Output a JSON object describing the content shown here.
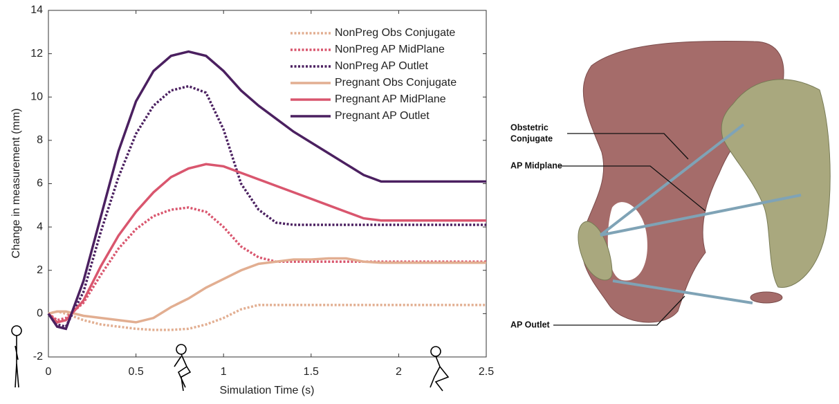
{
  "chart_data": {
    "type": "line",
    "xlabel": "Simulation Time (s)",
    "ylabel": "Change in measurement (mm)",
    "x": [
      0,
      0.05,
      0.1,
      0.2,
      0.3,
      0.4,
      0.5,
      0.6,
      0.7,
      0.8,
      0.9,
      1.0,
      1.1,
      1.2,
      1.3,
      1.4,
      1.5,
      1.6,
      1.7,
      1.8,
      1.9,
      2.0,
      2.1,
      2.2,
      2.3,
      2.4,
      2.5
    ],
    "xlim": [
      0,
      2.5
    ],
    "xticks": [
      0,
      0.5,
      1,
      1.5,
      2,
      2.5
    ],
    "ylim": [
      -2,
      14
    ],
    "yticks": [
      -2,
      0,
      2,
      4,
      6,
      8,
      10,
      12,
      14
    ],
    "legend": "upper right",
    "series": [
      {
        "name": "NonPreg Obs Conjugate",
        "color": "#e2ae91",
        "style": "dotted",
        "values": [
          0,
          0.1,
          0,
          -0.3,
          -0.5,
          -0.6,
          -0.7,
          -0.75,
          -0.75,
          -0.7,
          -0.5,
          -0.2,
          0.2,
          0.4,
          0.4,
          0.4,
          0.4,
          0.4,
          0.4,
          0.4,
          0.4,
          0.4,
          0.4,
          0.4,
          0.4,
          0.4,
          0.4
        ]
      },
      {
        "name": "NonPreg AP MidPlane",
        "color": "#d9566e",
        "style": "dotted",
        "values": [
          0,
          -0.3,
          -0.2,
          0.5,
          1.8,
          3.0,
          3.9,
          4.5,
          4.8,
          4.9,
          4.7,
          4.0,
          3.1,
          2.6,
          2.4,
          2.4,
          2.4,
          2.4,
          2.4,
          2.4,
          2.4,
          2.4,
          2.4,
          2.4,
          2.4,
          2.4,
          2.4
        ]
      },
      {
        "name": "NonPreg AP Outlet",
        "color": "#4b2060",
        "style": "dotted",
        "values": [
          0,
          -0.5,
          -0.6,
          1.0,
          3.8,
          6.3,
          8.3,
          9.6,
          10.3,
          10.5,
          10.2,
          8.5,
          6.0,
          4.8,
          4.2,
          4.1,
          4.1,
          4.1,
          4.1,
          4.1,
          4.1,
          4.1,
          4.1,
          4.1,
          4.1,
          4.1,
          4.1
        ]
      },
      {
        "name": "Pregnant Obs Conjugate",
        "color": "#e2ae91",
        "style": "solid",
        "values": [
          0,
          0.1,
          0.1,
          -0.1,
          -0.2,
          -0.3,
          -0.4,
          -0.2,
          0.3,
          0.7,
          1.2,
          1.6,
          2.0,
          2.3,
          2.4,
          2.5,
          2.5,
          2.55,
          2.55,
          2.4,
          2.35,
          2.35,
          2.35,
          2.35,
          2.35,
          2.35,
          2.35
        ]
      },
      {
        "name": "Pregnant AP MidPlane",
        "color": "#d9566e",
        "style": "solid",
        "values": [
          0,
          -0.4,
          -0.3,
          0.6,
          2.2,
          3.6,
          4.7,
          5.6,
          6.3,
          6.7,
          6.9,
          6.8,
          6.5,
          6.2,
          5.9,
          5.6,
          5.3,
          5.0,
          4.7,
          4.4,
          4.3,
          4.3,
          4.3,
          4.3,
          4.3,
          4.3,
          4.3
        ]
      },
      {
        "name": "Pregnant AP Outlet",
        "color": "#4b2060",
        "style": "solid",
        "values": [
          0,
          -0.6,
          -0.7,
          1.5,
          4.5,
          7.5,
          9.8,
          11.2,
          11.9,
          12.1,
          11.9,
          11.2,
          10.3,
          9.6,
          9.0,
          8.4,
          7.9,
          7.4,
          6.9,
          6.4,
          6.1,
          6.1,
          6.1,
          6.1,
          6.1,
          6.1,
          6.1
        ]
      }
    ]
  },
  "diagram": {
    "labels": [
      [
        "Obstetric",
        "Conjugate"
      ],
      [
        "AP Midplane"
      ],
      [
        "AP Outlet"
      ]
    ]
  }
}
